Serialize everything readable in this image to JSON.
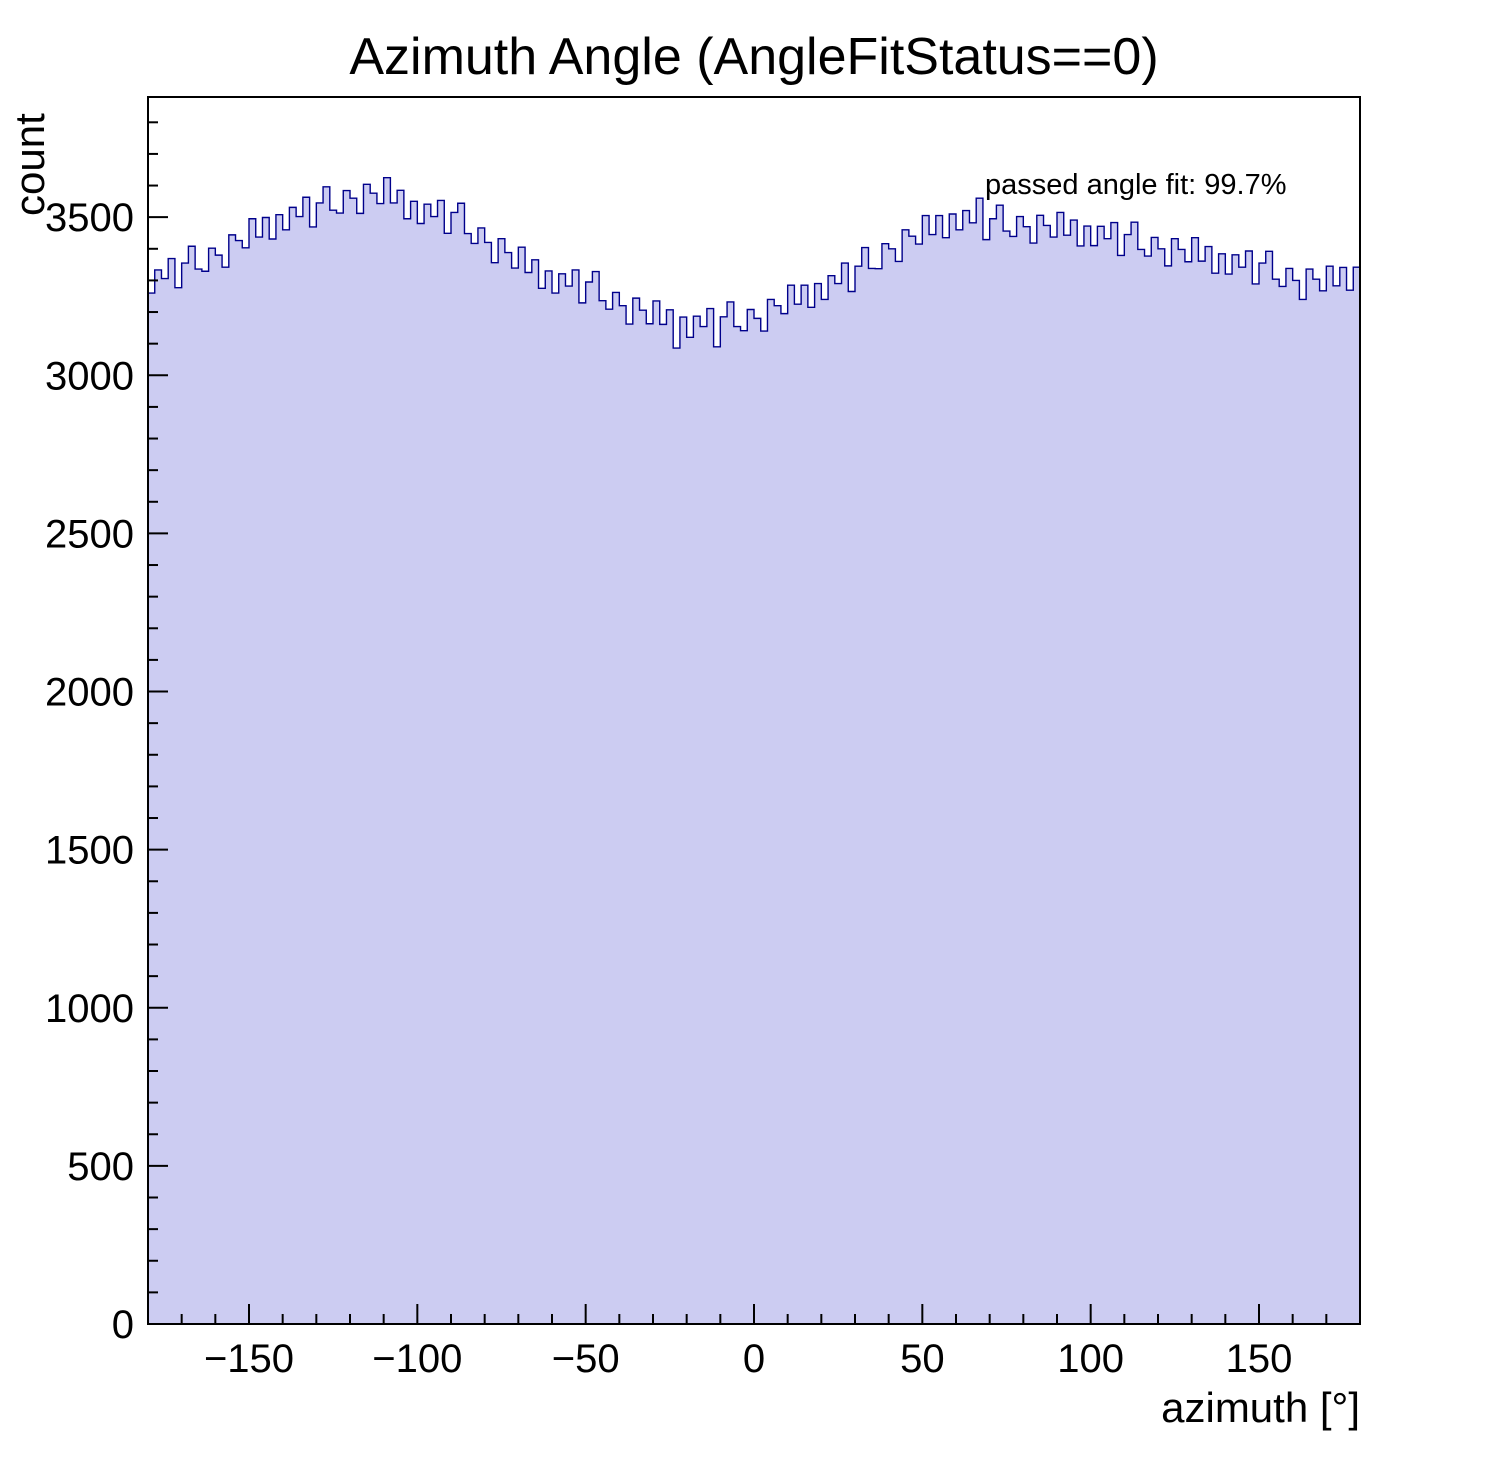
{
  "page": {
    "background": "#ffffff"
  },
  "chart_data": {
    "type": "bar",
    "subtype": "histogram-step-filled",
    "title": "Azimuth Angle (AngleFitStatus==0)",
    "xlabel": "azimuth [°]",
    "ylabel": "count",
    "annotation": "passed angle fit: 99.7%",
    "xlim": [
      -180,
      180
    ],
    "ylim": [
      0,
      3880
    ],
    "bin_start": -180,
    "bin_width": 2,
    "fill_color": "#ccccf2",
    "line_color": "#00008b",
    "axis_color": "#000000",
    "grid": false,
    "legend_position": "none",
    "x_ticks": {
      "major_values": [
        -150,
        -100,
        -50,
        0,
        50,
        100,
        150
      ],
      "major_labels": [
        "−150",
        "−100",
        "−50",
        "0",
        "50",
        "100",
        "150"
      ],
      "minor_step": 10
    },
    "y_ticks": {
      "major_values": [
        0,
        500,
        1000,
        1500,
        2000,
        2500,
        3000,
        3500
      ],
      "major_labels": [
        "0",
        "500",
        "1000",
        "1500",
        "2000",
        "2500",
        "3000",
        "3500"
      ],
      "minor_step": 100
    },
    "values": [
      3260,
      3333,
      3306,
      3369,
      3277,
      3355,
      3408,
      3336,
      3329,
      3402,
      3380,
      3342,
      3444,
      3426,
      3403,
      3495,
      3437,
      3499,
      3431,
      3508,
      3460,
      3531,
      3502,
      3563,
      3469,
      3545,
      3596,
      3522,
      3513,
      3584,
      3560,
      3512,
      3604,
      3576,
      3543,
      3625,
      3545,
      3585,
      3495,
      3550,
      3480,
      3541,
      3502,
      3553,
      3449,
      3515,
      3544,
      3448,
      3417,
      3466,
      3420,
      3356,
      3432,
      3388,
      3339,
      3405,
      3325,
      3365,
      3275,
      3330,
      3260,
      3321,
      3282,
      3333,
      3229,
      3295,
      3328,
      3236,
      3209,
      3262,
      3220,
      3162,
      3244,
      3206,
      3163,
      3235,
      3161,
      3207,
      3086,
      3184,
      3120,
      3187,
      3154,
      3211,
      3090,
      3185,
      3232,
      3154,
      3141,
      3208,
      3180,
      3140,
      3240,
      3220,
      3195,
      3285,
      3225,
      3285,
      3215,
      3290,
      3240,
      3315,
      3290,
      3355,
      3265,
      3345,
      3404,
      3338,
      3337,
      3416,
      3400,
      3360,
      3460,
      3440,
      3415,
      3505,
      3445,
      3505,
      3435,
      3510,
      3460,
      3521,
      3482,
      3560,
      3429,
      3495,
      3538,
      3456,
      3439,
      3502,
      3470,
      3418,
      3506,
      3474,
      3437,
      3515,
      3443,
      3491,
      3409,
      3472,
      3410,
      3471,
      3432,
      3483,
      3379,
      3445,
      3484,
      3398,
      3377,
      3436,
      3400,
      3346,
      3432,
      3398,
      3359,
      3435,
      3361,
      3407,
      3323,
      3384,
      3320,
      3381,
      3342,
      3393,
      3289,
      3355,
      3392,
      3304,
      3281,
      3338,
      3300,
      3240,
      3336,
      3304,
      3267,
      3345,
      3283,
      3341,
      3269,
      3342
    ]
  }
}
